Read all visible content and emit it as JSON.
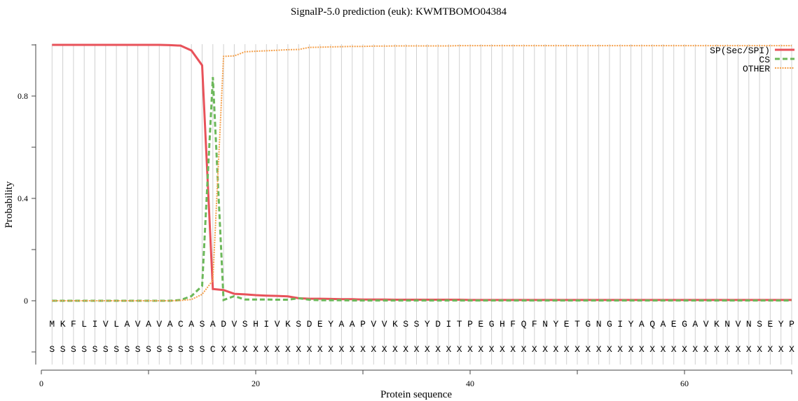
{
  "chart_data": {
    "type": "line",
    "title": "SignalP-5.0 prediction (euk):  KWMTBOMO04384",
    "xlabel": "Protein sequence",
    "ylabel": "Probability",
    "xlim": [
      0,
      70
    ],
    "ylim": [
      -0.25,
      1.0
    ],
    "x_ticks": [
      0,
      20,
      40,
      60
    ],
    "y_ticks": [
      "0",
      "0.4",
      "0.8"
    ],
    "grid": "vertical line at each residue",
    "legend_placement": "top-right",
    "sequence": [
      "M",
      "K",
      "F",
      "L",
      "I",
      "V",
      "L",
      "A",
      "V",
      "A",
      "V",
      "A",
      "C",
      "A",
      "S",
      "A",
      "D",
      "V",
      "S",
      "H",
      "I",
      "V",
      "K",
      "S",
      "D",
      "E",
      "Y",
      "A",
      "A",
      "P",
      "V",
      "V",
      "K",
      "S",
      "S",
      "Y",
      "D",
      "I",
      "T",
      "P",
      "E",
      "G",
      "H",
      "F",
      "Q",
      "F",
      "N",
      "Y",
      "E",
      "T",
      "G",
      "N",
      "G",
      "I",
      "Y",
      "A",
      "Q",
      "A",
      "E",
      "G",
      "A",
      "V",
      "K",
      "N",
      "V",
      "N",
      "S",
      "E",
      "Y",
      "P"
    ],
    "labels": [
      "S",
      "S",
      "S",
      "S",
      "S",
      "S",
      "S",
      "S",
      "S",
      "S",
      "S",
      "S",
      "S",
      "S",
      "S",
      "C",
      "X",
      "X",
      "X",
      "X",
      "X",
      "X",
      "X",
      "X",
      "X",
      "X",
      "X",
      "X",
      "X",
      "X",
      "X",
      "X",
      "X",
      "X",
      "X",
      "X",
      "X",
      "X",
      "X",
      "X",
      "X",
      "X",
      "X",
      "X",
      "X",
      "X",
      "X",
      "X",
      "X",
      "X",
      "X",
      "X",
      "X",
      "X",
      "X",
      "X",
      "X",
      "X",
      "X",
      "X",
      "X",
      "X",
      "X",
      "X",
      "X",
      "X",
      "X",
      "X",
      "X",
      "X"
    ],
    "series": [
      {
        "name": "SP(Sec/SPI)",
        "color": "#e8525a",
        "style": "solid",
        "values": [
          1.0,
          1.0,
          1.0,
          1.0,
          1.0,
          1.0,
          1.0,
          1.0,
          1.0,
          1.0,
          1.0,
          0.999,
          0.997,
          0.978,
          0.92,
          0.046,
          0.042,
          0.027,
          0.025,
          0.022,
          0.02,
          0.019,
          0.017,
          0.01,
          0.008,
          0.008,
          0.007,
          0.006,
          0.006,
          0.005,
          0.005,
          0.005,
          0.004,
          0.004,
          0.004,
          0.004,
          0.004,
          0.004,
          0.004,
          0.003,
          0.003,
          0.003,
          0.003,
          0.003,
          0.003,
          0.003,
          0.003,
          0.003,
          0.003,
          0.003,
          0.003,
          0.003,
          0.003,
          0.003,
          0.003,
          0.003,
          0.003,
          0.003,
          0.003,
          0.003,
          0.003,
          0.003,
          0.003,
          0.003,
          0.003,
          0.003,
          0.003,
          0.003,
          0.003,
          0.003
        ]
      },
      {
        "name": "CS",
        "color": "#6cb85a",
        "style": "dashed",
        "values": [
          0,
          0,
          0,
          0,
          0,
          0,
          0,
          0,
          0,
          0,
          0,
          0,
          0.003,
          0.018,
          0.058,
          0.874,
          0.003,
          0.018,
          0.005,
          0.005,
          0.005,
          0.004,
          0.004,
          0.01,
          0.004,
          0.002,
          0.002,
          0.002,
          0.001,
          0.001,
          0.001,
          0.001,
          0.001,
          0.001,
          0.001,
          0.001,
          0.001,
          0.001,
          0.001,
          0.001,
          0.001,
          0.001,
          0.001,
          0.001,
          0.001,
          0.001,
          0.001,
          0.001,
          0.001,
          0.001,
          0.001,
          0.001,
          0.001,
          0.001,
          0.001,
          0.001,
          0.001,
          0.001,
          0.001,
          0.001,
          0.001,
          0.001,
          0.001,
          0.001,
          0.001,
          0.001,
          0.001,
          0.001,
          0.001,
          0.001
        ]
      },
      {
        "name": "OTHER",
        "color": "#f5a04a",
        "style": "dotted",
        "values": [
          0,
          0,
          0,
          0,
          0,
          0,
          0,
          0,
          0,
          0,
          0,
          0,
          0.001,
          0.005,
          0.025,
          0.08,
          0.955,
          0.957,
          0.973,
          0.975,
          0.977,
          0.979,
          0.981,
          0.982,
          0.99,
          0.991,
          0.992,
          0.993,
          0.994,
          0.994,
          0.995,
          0.995,
          0.996,
          0.996,
          0.996,
          0.996,
          0.996,
          0.996,
          0.997,
          0.997,
          0.997,
          0.997,
          0.997,
          0.997,
          0.997,
          0.997,
          0.997,
          0.997,
          0.997,
          0.997,
          0.997,
          0.997,
          0.997,
          0.997,
          0.997,
          0.997,
          0.997,
          0.997,
          0.997,
          0.997,
          0.997,
          0.997,
          0.997,
          0.997,
          0.997,
          0.997,
          0.997,
          0.997,
          0.997,
          0.997
        ]
      }
    ]
  }
}
